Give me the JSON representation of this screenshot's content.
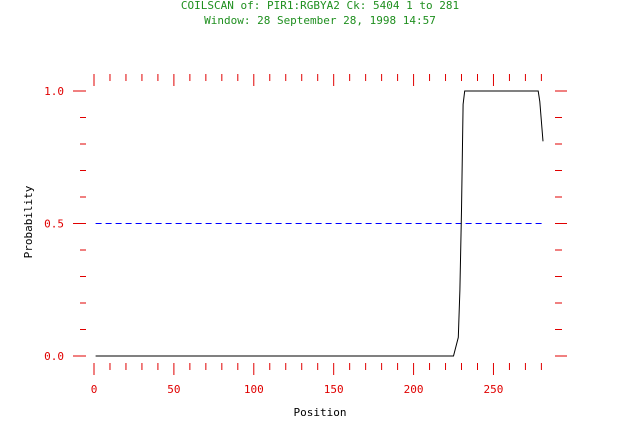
{
  "header": {
    "line1": "COILSCAN of: PIR1:RGBYA2  Ck: 5404  1 to 281",
    "line2": "Window: 28 September 28, 1998 14:57"
  },
  "colors": {
    "title": "#1f8f1f",
    "axis": "#e00000",
    "line": "#000000",
    "threshold": "#0000ff"
  },
  "chart_data": {
    "type": "line",
    "xlabel": "Position",
    "ylabel": "Probability",
    "xlim": [
      0,
      281
    ],
    "ylim": [
      0,
      1.0
    ],
    "x_ticks": [
      0,
      50,
      100,
      150,
      200,
      250
    ],
    "x_tick_labels": [
      "0",
      "50",
      "100",
      "150",
      "200",
      "250"
    ],
    "y_ticks": [
      0,
      0.5,
      1.0
    ],
    "y_tick_labels": [
      "0.0",
      "0.5",
      "1.0"
    ],
    "threshold": 0.5,
    "series": [
      {
        "x": [
          1,
          225,
          228,
          229,
          230,
          231,
          232,
          278,
          279,
          281
        ],
        "y": [
          0.0,
          0.0,
          0.07,
          0.25,
          0.55,
          0.95,
          1.0,
          1.0,
          0.96,
          0.81
        ]
      }
    ]
  }
}
